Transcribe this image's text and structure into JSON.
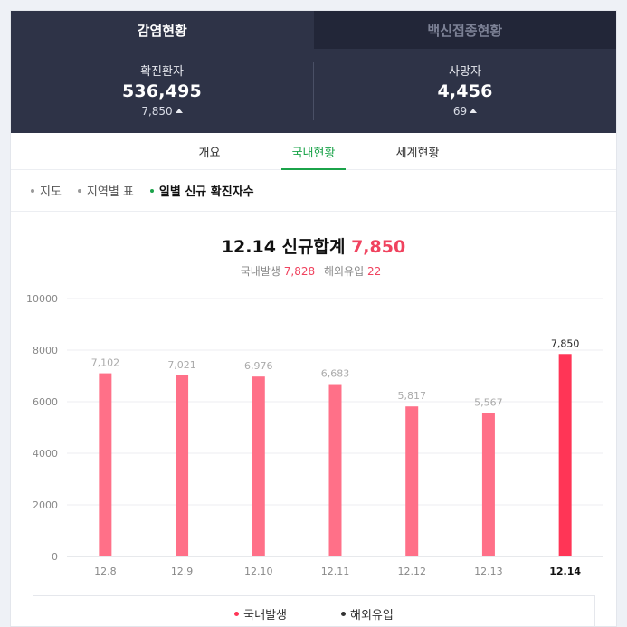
{
  "top_tabs": [
    {
      "label": "감염현황"
    },
    {
      "label": "백신접종현황"
    }
  ],
  "stats": [
    {
      "label": "확진환자",
      "value": "536,495",
      "delta": "7,850"
    },
    {
      "label": "사망자",
      "value": "4,456",
      "delta": "69"
    }
  ],
  "sub_tabs": [
    {
      "label": "개요"
    },
    {
      "label": "국내현황"
    },
    {
      "label": "세계현황"
    }
  ],
  "filters": [
    {
      "label": "지도"
    },
    {
      "label": "지역별 표"
    },
    {
      "label": "일별 신규 확진자수"
    }
  ],
  "summary": {
    "title": "12.14 신규합계",
    "total": "7,850",
    "domestic_label": "국내발생",
    "domestic_value": "7,828",
    "overseas_label": "해외유입",
    "overseas_value": "22"
  },
  "colors": {
    "bar": "#ff7088",
    "bar_highlight": "#ff3556",
    "accent_green": "#1ba34a",
    "header_bg": "#2e3347"
  },
  "chart_data": {
    "type": "bar",
    "categories": [
      "12.8",
      "12.9",
      "12.10",
      "12.11",
      "12.12",
      "12.13",
      "12.14"
    ],
    "values": [
      7102,
      7021,
      6976,
      6683,
      5817,
      5567,
      7850
    ],
    "value_labels": [
      "7,102",
      "7,021",
      "6,976",
      "6,683",
      "5,817",
      "5,567",
      "7,850"
    ],
    "highlight_index": 6,
    "ylim": [
      0,
      10000
    ],
    "yticks": [
      0,
      2000,
      4000,
      6000,
      8000,
      10000
    ],
    "grid": true
  },
  "legend": [
    {
      "label": "국내발생",
      "color": "#ff3556"
    },
    {
      "label": "해외유입",
      "color": "#333333"
    }
  ]
}
